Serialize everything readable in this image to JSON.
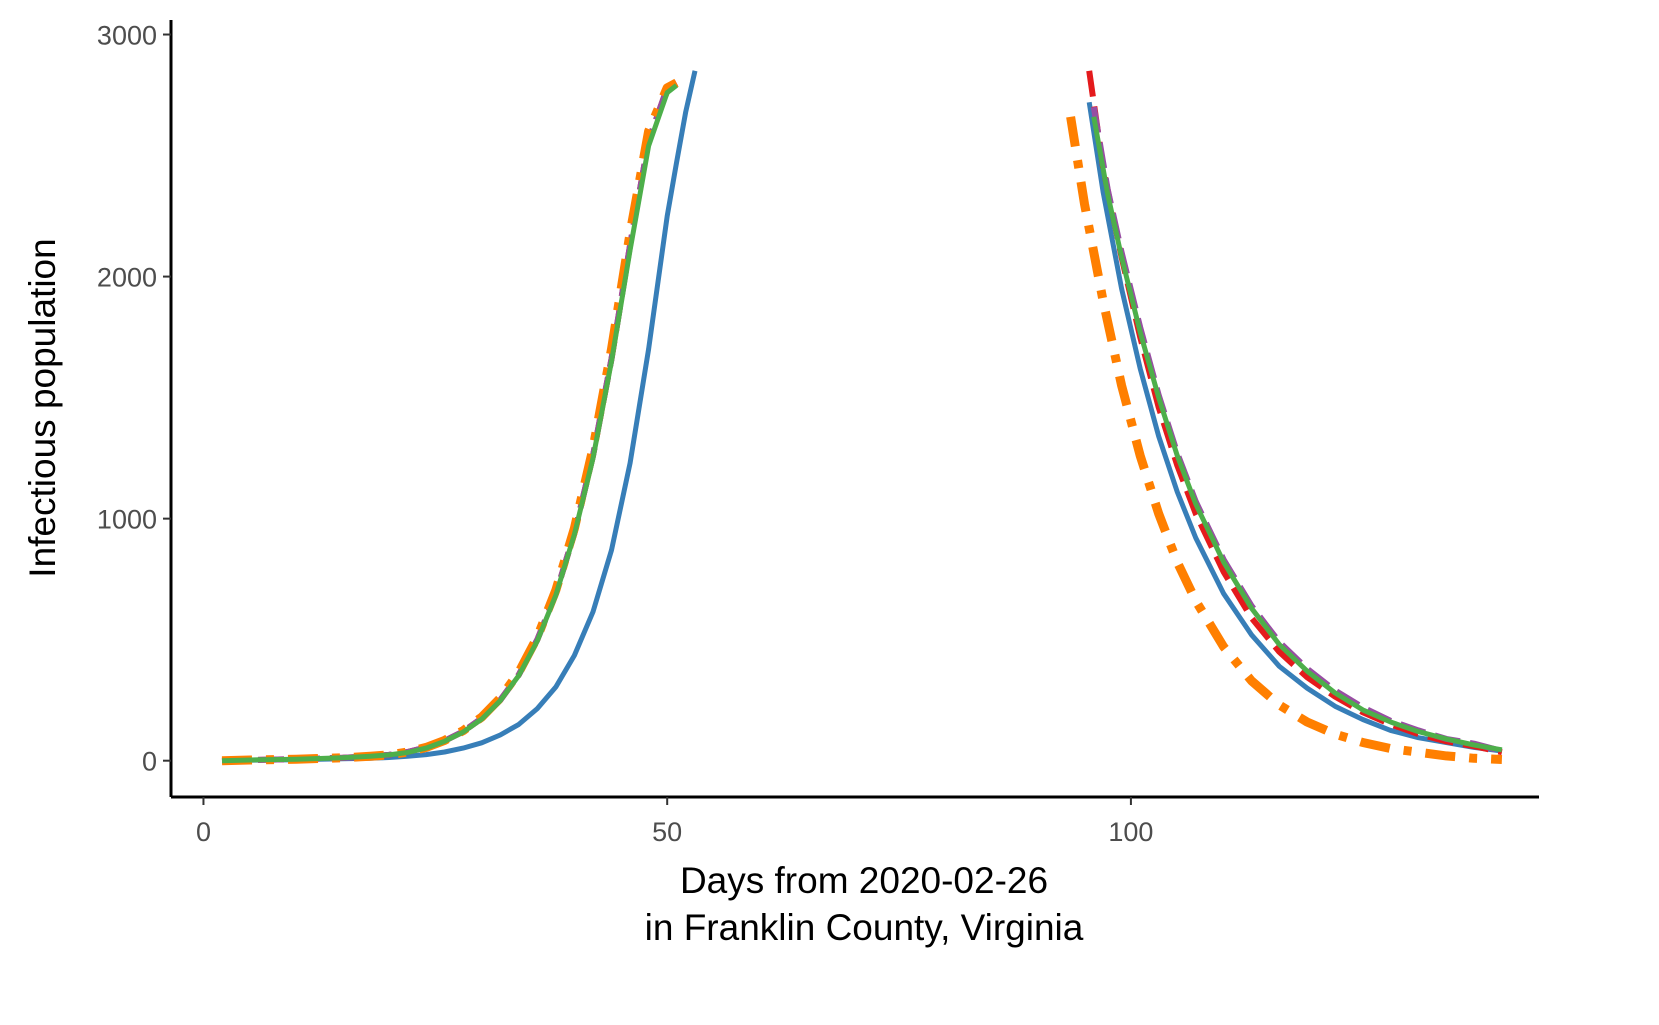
{
  "chart_data": {
    "type": "line",
    "xlabel_line1": "Days from 2020-02-26",
    "xlabel_line2": "in Franklin County, Virginia",
    "ylabel": "Infectious population",
    "xlim": [
      -3.5,
      144
    ],
    "ylim": [
      -150,
      3060
    ],
    "xticks": [
      0,
      50,
      100
    ],
    "yticks": [
      0,
      1000,
      2000,
      3000
    ],
    "grid": false,
    "legend": "none",
    "series": [
      {
        "color": "#377eb8",
        "style": "solid",
        "segments": [
          {
            "x": [
              2,
              5,
              10,
              15,
              18,
              20,
              22,
              24,
              26,
              28,
              30,
              32,
              34,
              36,
              38,
              40,
              42,
              44,
              46,
              48,
              50,
              51,
              52,
              53
            ],
            "y": [
              0,
              2,
              4,
              8,
              10,
              13,
              18,
              25,
              36,
              52,
              74,
              106,
              150,
              215,
              305,
              435,
              615,
              870,
              1230,
              1700,
              2250,
              2470,
              2680,
              2850
            ]
          },
          {
            "x": [
              95.5,
              97,
              99,
              101,
              103,
              105,
              107,
              110,
              113,
              116,
              119,
              122,
              125,
              128,
              131,
              134,
              137,
              140
            ],
            "y": [
              2720,
              2350,
              1950,
              1620,
              1340,
              1110,
              920,
              690,
              520,
              390,
              300,
              225,
              170,
              125,
              95,
              75,
              55,
              40
            ]
          }
        ]
      },
      {
        "color": "#e41a1c",
        "style": "dashed",
        "segments": [
          {
            "x": [
              2,
              5,
              10,
              15,
              18,
              20,
              22,
              24,
              26,
              28,
              30,
              32,
              34,
              36,
              38,
              40,
              42,
              44,
              46,
              48,
              50,
              51
            ],
            "y": [
              0,
              3,
              6,
              12,
              18,
              24,
              36,
              55,
              82,
              120,
              175,
              250,
              355,
              500,
              690,
              940,
              1260,
              1660,
              2130,
              2560,
              2780,
              2800
            ]
          },
          {
            "x": [
              95.5,
              97,
              99,
              101,
              103,
              105,
              107,
              110,
              113,
              116,
              119,
              122,
              125,
              128,
              131,
              134,
              137,
              140
            ],
            "y": [
              2850,
              2450,
              2080,
              1750,
              1460,
              1220,
              1020,
              780,
              590,
              450,
              345,
              265,
              200,
              150,
              110,
              80,
              60,
              35
            ]
          }
        ]
      },
      {
        "color": "#984ea3",
        "style": "dashed",
        "segments": [
          {
            "x": [
              2,
              5,
              10,
              15,
              18,
              20,
              22,
              24,
              26,
              28,
              30,
              32,
              34,
              36,
              38,
              40,
              42,
              44,
              46,
              48,
              50,
              51
            ],
            "y": [
              0,
              3,
              6,
              12,
              18,
              24,
              36,
              55,
              82,
              120,
              175,
              250,
              355,
              500,
              690,
              940,
              1260,
              1660,
              2130,
              2560,
              2780,
              2800
            ]
          },
          {
            "x": [
              96,
              97.5,
              99,
              101,
              103,
              105,
              107,
              110,
              113,
              116,
              119,
              122,
              125,
              128,
              131,
              134,
              137,
              140
            ],
            "y": [
              2700,
              2360,
              2100,
              1790,
              1510,
              1270,
              1070,
              830,
              640,
              490,
              380,
              290,
              220,
              165,
              125,
              90,
              70,
              40
            ]
          }
        ]
      },
      {
        "color": "#ff7f00",
        "style": "dashdot",
        "segments": [
          {
            "x": [
              2,
              5,
              10,
              15,
              18,
              20,
              22,
              24,
              26,
              28,
              30,
              32,
              34,
              36,
              38,
              40,
              42,
              44,
              46,
              48,
              50,
              51
            ],
            "y": [
              0,
              3,
              6,
              12,
              18,
              24,
              36,
              55,
              84,
              124,
              180,
              258,
              365,
              510,
              705,
              960,
              1290,
              1700,
              2180,
              2600,
              2780,
              2800
            ]
          },
          {
            "x": [
              93.5,
              95,
              97,
              99,
              101,
              103,
              105,
              107,
              110,
              113,
              116,
              119,
              122,
              125,
              128,
              131,
              134,
              137,
              140
            ],
            "y": [
              2660,
              2300,
              1900,
              1550,
              1260,
              1020,
              820,
              660,
              470,
              330,
              230,
              160,
              110,
              75,
              50,
              35,
              20,
              10,
              5
            ]
          }
        ]
      },
      {
        "color": "#4daf4a",
        "style": "solid",
        "segments": [
          {
            "x": [
              2,
              5,
              10,
              15,
              18,
              20,
              22,
              24,
              26,
              28,
              30,
              32,
              34,
              36,
              38,
              40,
              42,
              44,
              46,
              48,
              50,
              51
            ],
            "y": [
              0,
              3,
              6,
              12,
              18,
              24,
              34,
              52,
              80,
              118,
              172,
              248,
              352,
              495,
              685,
              935,
              1250,
              1650,
              2110,
              2540,
              2760,
              2790
            ]
          },
          {
            "x": [
              96,
              97.5,
              99,
              101,
              103,
              105,
              107,
              110,
              113,
              116,
              119,
              122,
              125,
              128,
              131,
              134,
              137,
              140
            ],
            "y": [
              2660,
              2340,
              2080,
              1770,
              1500,
              1260,
              1060,
              820,
              630,
              480,
              370,
              280,
              210,
              160,
              120,
              90,
              65,
              45
            ]
          }
        ]
      }
    ]
  }
}
